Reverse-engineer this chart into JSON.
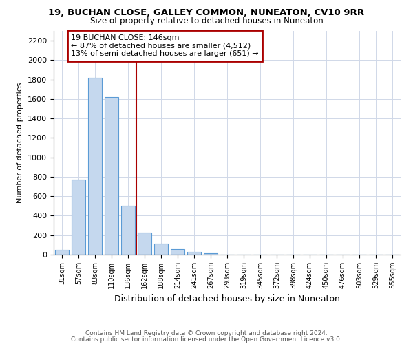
{
  "title": "19, BUCHAN CLOSE, GALLEY COMMON, NUNEATON, CV10 9RR",
  "subtitle": "Size of property relative to detached houses in Nuneaton",
  "xlabel": "Distribution of detached houses by size in Nuneaton",
  "ylabel": "Number of detached properties",
  "categories": [
    "31sqm",
    "57sqm",
    "83sqm",
    "110sqm",
    "136sqm",
    "162sqm",
    "188sqm",
    "214sqm",
    "241sqm",
    "267sqm",
    "293sqm",
    "319sqm",
    "345sqm",
    "372sqm",
    "398sqm",
    "424sqm",
    "450sqm",
    "476sqm",
    "503sqm",
    "529sqm",
    "555sqm"
  ],
  "values": [
    50,
    770,
    1820,
    1620,
    500,
    230,
    110,
    55,
    30,
    15,
    0,
    0,
    0,
    0,
    0,
    0,
    0,
    0,
    0,
    0,
    0
  ],
  "bar_color": "#c5d8ee",
  "bar_edge_color": "#5b9bd5",
  "highlight_index": 4,
  "highlight_color": "#aa0000",
  "annotation_text": "19 BUCHAN CLOSE: 146sqm\n← 87% of detached houses are smaller (4,512)\n13% of semi-detached houses are larger (651) →",
  "annotation_box_color": "#ffffff",
  "annotation_box_edge": "#aa0000",
  "ylim": [
    0,
    2300
  ],
  "yticks": [
    0,
    200,
    400,
    600,
    800,
    1000,
    1200,
    1400,
    1600,
    1800,
    2000,
    2200
  ],
  "footer1": "Contains HM Land Registry data © Crown copyright and database right 2024.",
  "footer2": "Contains public sector information licensed under the Open Government Licence v3.0.",
  "bg_color": "#ffffff",
  "grid_color": "#d0d8e8"
}
